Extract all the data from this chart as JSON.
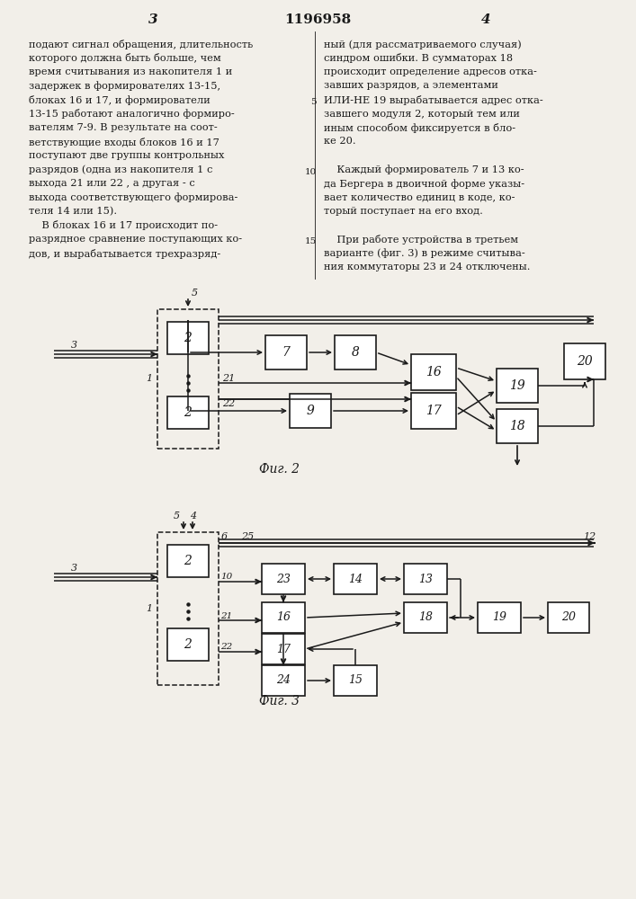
{
  "page_number_left": "3",
  "page_number_center": "1196958",
  "page_number_right": "4",
  "bg_color": "#f2efe9",
  "text_color": "#1a1a1a",
  "left_column_text": [
    "подают сигнал обращения, длительность",
    "которого должна быть больше, чем",
    "время считывания из накопителя 1 и",
    "задержек в формирователях 13-15,",
    "блоках 16 и 17, и формирователи",
    "13-15 работают аналогично формиро-",
    "вателям 7-9. В результате на соот-",
    "ветствующие входы блоков 16 и 17",
    "поступают две группы контрольных",
    "разрядов (одна из накопителя 1 с",
    "выхода 21 или 22 , а другая - с",
    "выхода соответствующего формирова-",
    "теля 14 или 15).",
    "    В блоках 16 и 17 происходит по-",
    "разрядное сравнение поступающих ко-",
    "дов, и вырабатывается трехразряд-"
  ],
  "right_column_text": [
    "ный (для рассматриваемого случая)",
    "синдром ошибки. В сумматорах 18",
    "происходит определение адресов отка-",
    "завших разрядов, а элементами",
    "ИЛИ-НЕ 19 вырабатывается адрес отка-",
    "завшего модуля 2, который тем или",
    "иным способом фиксируется в бло-",
    "ке 20.",
    "",
    "    Каждый формирователь 7 и 13 ко-",
    "да Бергера в двоичной форме указы-",
    "вает количество единиц в коде, ко-",
    "торый поступает на его вход.",
    "",
    "    При работе устройства в третьем",
    "варианте (фиг. 3) в режиме считыва-",
    "ния коммутаторы 23 и 24 отключены."
  ],
  "fig2_label": "Фиг. 2",
  "fig3_label": "Фиг. 3"
}
